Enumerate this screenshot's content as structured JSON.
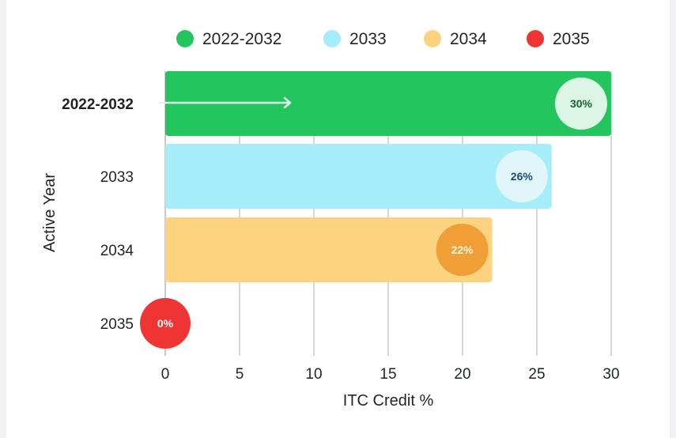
{
  "chart_data": {
    "type": "bar",
    "orientation": "horizontal",
    "categories": [
      "2022-2032",
      "2033",
      "2034",
      "2035"
    ],
    "values": [
      30,
      26,
      22,
      0
    ],
    "value_labels": [
      "30%",
      "26%",
      "22%",
      "0%"
    ],
    "highlighted_category": "2022-2032",
    "xlabel": "ITC Credit %",
    "ylabel": "Active Year",
    "xlim": [
      0,
      30
    ],
    "xticks": [
      0,
      5,
      10,
      15,
      20,
      25,
      30
    ],
    "grid": "vertical",
    "legend": {
      "placement": "top",
      "entries": [
        "2022-2032",
        "2033",
        "2034",
        "2035"
      ]
    },
    "colors": {
      "2022-2032": {
        "bar": "#22c55e",
        "badge": "#dcf5e4",
        "badge_text": "#166534",
        "legend": "#22c55e"
      },
      "2033": {
        "bar": "#a5edf8",
        "badge": "#e0f6fb",
        "badge_text": "#1e4d73",
        "legend": "#a5edf8"
      },
      "2034": {
        "bar": "#fdd37f",
        "badge": "#ef9f35",
        "badge_text": "#fff4df",
        "legend": "#fdd37f"
      },
      "2035": {
        "bar": "#ef3434",
        "badge": "#ef3434",
        "badge_text": "#ffffff",
        "legend": "#ef3434"
      }
    },
    "highlight_label_color": "#22c55e"
  }
}
